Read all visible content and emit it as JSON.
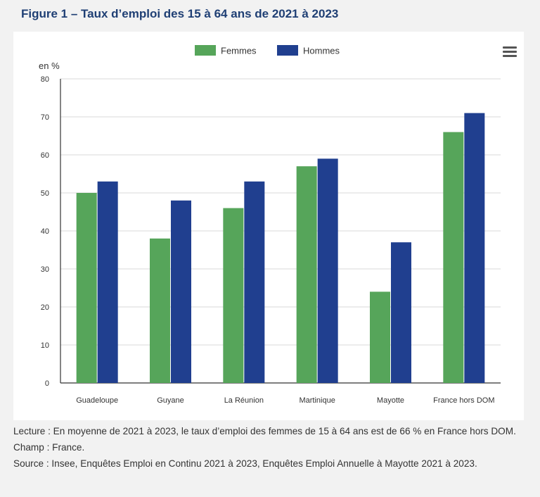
{
  "figure": {
    "title": "Figure 1 – Taux d’emploi des 15 à 64 ans de 2021 à 2023"
  },
  "menu": {
    "icon": "hamburger-menu-icon"
  },
  "chart_data": {
    "type": "bar",
    "categories": [
      "Guadeloupe",
      "Guyane",
      "La Réunion",
      "Martinique",
      "Mayotte",
      "France hors DOM"
    ],
    "series": [
      {
        "name": "Femmes",
        "color": "#56a55a",
        "values": [
          50,
          38,
          46,
          57,
          24,
          66
        ]
      },
      {
        "name": "Hommes",
        "color": "#203f8f",
        "values": [
          53,
          48,
          53,
          59,
          37,
          71
        ]
      }
    ],
    "ylabel": "en %",
    "ylim": [
      0,
      80
    ],
    "yticks": [
      0,
      10,
      20,
      30,
      40,
      50,
      60,
      70,
      80
    ],
    "grid": true,
    "legend_position": "top-center"
  },
  "notes": {
    "lecture": "Lecture : En moyenne de 2021 à 2023, le taux d’emploi des femmes de 15 à 64 ans est de 66 % en France hors DOM.",
    "champ": "Champ : France.",
    "source": "Source : Insee, Enquêtes Emploi en Continu 2021 à 2023, Enquêtes Emploi Annuelle à Mayotte 2021 à 2023."
  }
}
